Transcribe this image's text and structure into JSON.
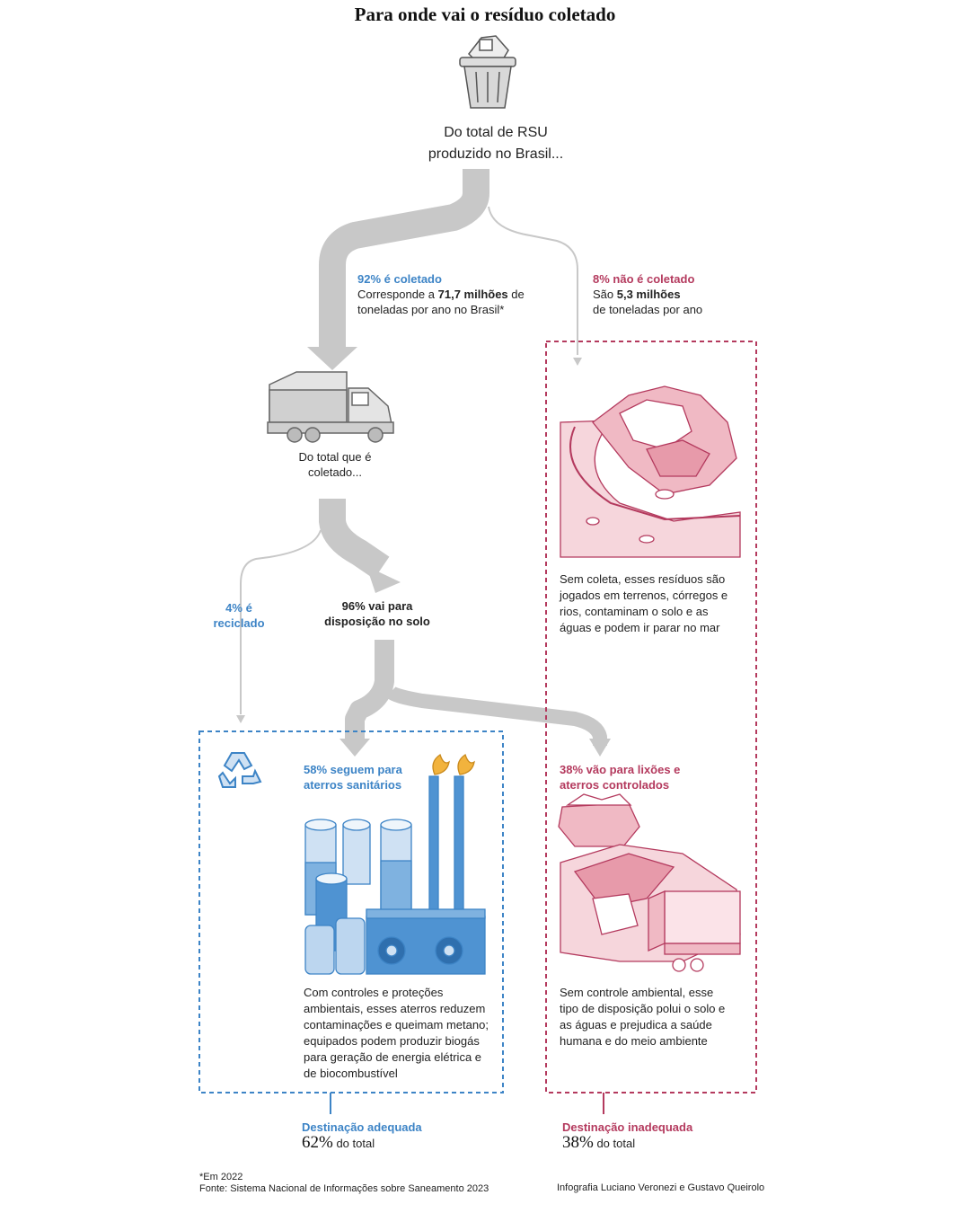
{
  "title": "Para onde vai o resíduo coletado",
  "top_label": {
    "line1": "Do total de RSU",
    "line2": "produzido no Brasil..."
  },
  "collected": {
    "heading": "92% é coletado",
    "line1_pre": "Corresponde a ",
    "line1_bold": "71,7 milhões",
    "line1_post": " de",
    "line2": "toneladas por ano no Brasil*"
  },
  "not_collected": {
    "heading": "8% não é coletado",
    "line1_pre": "São ",
    "line1_bold": "5,3 milhões",
    "line2": "de toneladas por ano",
    "description": [
      "Sem coleta, esses resíduos são",
      "jogados em terrenos, córregos e",
      "rios, contaminam o solo e as",
      "águas e podem ir parar no mar"
    ]
  },
  "truck_label": {
    "line1": "Do total que é",
    "line2": "coletado..."
  },
  "recycled": {
    "line1": "4% é",
    "line2": "reciclado"
  },
  "soil": {
    "line1": "96% vai para",
    "line2": "disposição no solo"
  },
  "landfill": {
    "heading1": "58% seguem para",
    "heading2": "aterros sanitários",
    "description": [
      "Com controles e proteções",
      "ambientais, esses aterros reduzem",
      "contaminações e queimam metano;",
      "equipados podem produzir biogás",
      "para geração de energia elétrica e",
      "de biocombustível"
    ]
  },
  "dumps": {
    "heading1": "38% vão para lixões e",
    "heading2": "aterros controlados",
    "description": [
      "Sem controle ambiental, esse",
      "tipo de disposição polui o solo e",
      "as águas e prejudica a saúde",
      "humana e do meio ambiente"
    ]
  },
  "adequate": {
    "label": "Destinação adequada",
    "percent": "62%",
    "suffix": " do total"
  },
  "inadequate": {
    "label": "Destinação inadequada",
    "percent": "38%",
    "suffix": " do total"
  },
  "footnote": "*Em 2022",
  "source": "Fonte: Sistema Nacional de Informações sobre Saneamento 2023",
  "credit": "Infografia Luciano Veronezi e Gustavo Queirolo",
  "colors": {
    "blue": "#3d84c6",
    "red": "#b43a5e",
    "flow": "#c8c8c8",
    "pink": "#f3c6cf"
  },
  "icons": [
    "trash-can-icon",
    "garbage-truck-icon",
    "recycle-icon",
    "dump-illustration",
    "landfill-plant-illustration",
    "dumpster-icon"
  ]
}
